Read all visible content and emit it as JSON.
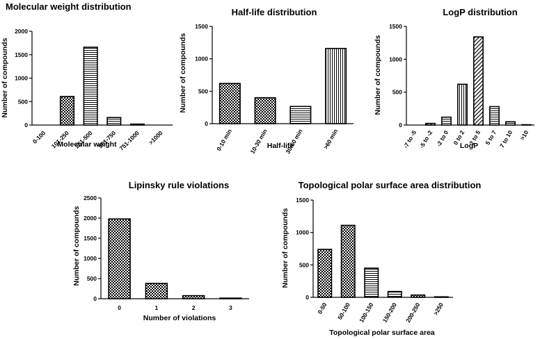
{
  "chart_data": [
    {
      "type": "bar",
      "title": "Molecular weight distribution",
      "xlabel": "Molecular weight",
      "ylabel": "Number of compounds",
      "categories": [
        "0-100",
        "101-250",
        "251-500",
        "501-750",
        "751-1000",
        ">1000"
      ],
      "values": [
        0,
        610,
        1660,
        160,
        20,
        0
      ],
      "patterns": [
        "checker",
        "checker",
        "hlines",
        "hlines",
        "checker",
        "hlines"
      ],
      "ylim": [
        0,
        2000
      ],
      "yticks": [
        0,
        500,
        1000,
        1500,
        2000
      ]
    },
    {
      "type": "bar",
      "title": "Half-life distribution",
      "xlabel": "Half-life",
      "ylabel": "Number of compounds",
      "categories": [
        "0-10 min",
        "10-30 min",
        "30-60 min",
        ">60 min"
      ],
      "values": [
        620,
        400,
        265,
        1160
      ],
      "patterns": [
        "checker",
        "checker",
        "hlines",
        "vlines"
      ],
      "ylim": [
        0,
        1500
      ],
      "yticks": [
        0,
        500,
        1000,
        1500
      ]
    },
    {
      "type": "bar",
      "title": "LogP distribution",
      "xlabel": "LogP",
      "ylabel": "Number of compounds",
      "categories": [
        "-7 to -5",
        "-5 to -2",
        "-2 to 0",
        "0 to 2",
        "2 to 5",
        "5 to 7",
        "7 to 10",
        ">10"
      ],
      "values": [
        0,
        25,
        120,
        620,
        1340,
        280,
        50,
        5
      ],
      "patterns": [
        "diag",
        "diag",
        "hlines",
        "vlines",
        "diag",
        "hlines",
        "hlines",
        "diag"
      ],
      "ylim": [
        0,
        1500
      ],
      "yticks": [
        0,
        500,
        1000,
        1500
      ]
    },
    {
      "type": "bar",
      "title": "Lipinsky rule violations",
      "xlabel": "Number of violations",
      "ylabel": "Number of compounds",
      "categories": [
        "0",
        "1",
        "2",
        "3"
      ],
      "values": [
        1980,
        380,
        75,
        15
      ],
      "patterns": [
        "checker",
        "checker",
        "checker",
        "checker"
      ],
      "ylim": [
        0,
        2500
      ],
      "yticks": [
        0,
        500,
        1000,
        1500,
        2000,
        2500
      ]
    },
    {
      "type": "bar",
      "title": "Topological polar surface area distribution",
      "xlabel": "Topological polar surface area",
      "ylabel": "Number of compounds",
      "categories": [
        "0-50",
        "50-100",
        "100-150",
        "150-200",
        "200-250",
        ">250"
      ],
      "values": [
        740,
        1110,
        450,
        90,
        35,
        8
      ],
      "patterns": [
        "checker",
        "checker",
        "hlines",
        "hlines",
        "checker",
        "hlines"
      ],
      "ylim": [
        0,
        1500
      ],
      "yticks": [
        0,
        500,
        1000,
        1500
      ]
    }
  ],
  "colors": {
    "ink": "#000000",
    "background": "#ffffff"
  }
}
